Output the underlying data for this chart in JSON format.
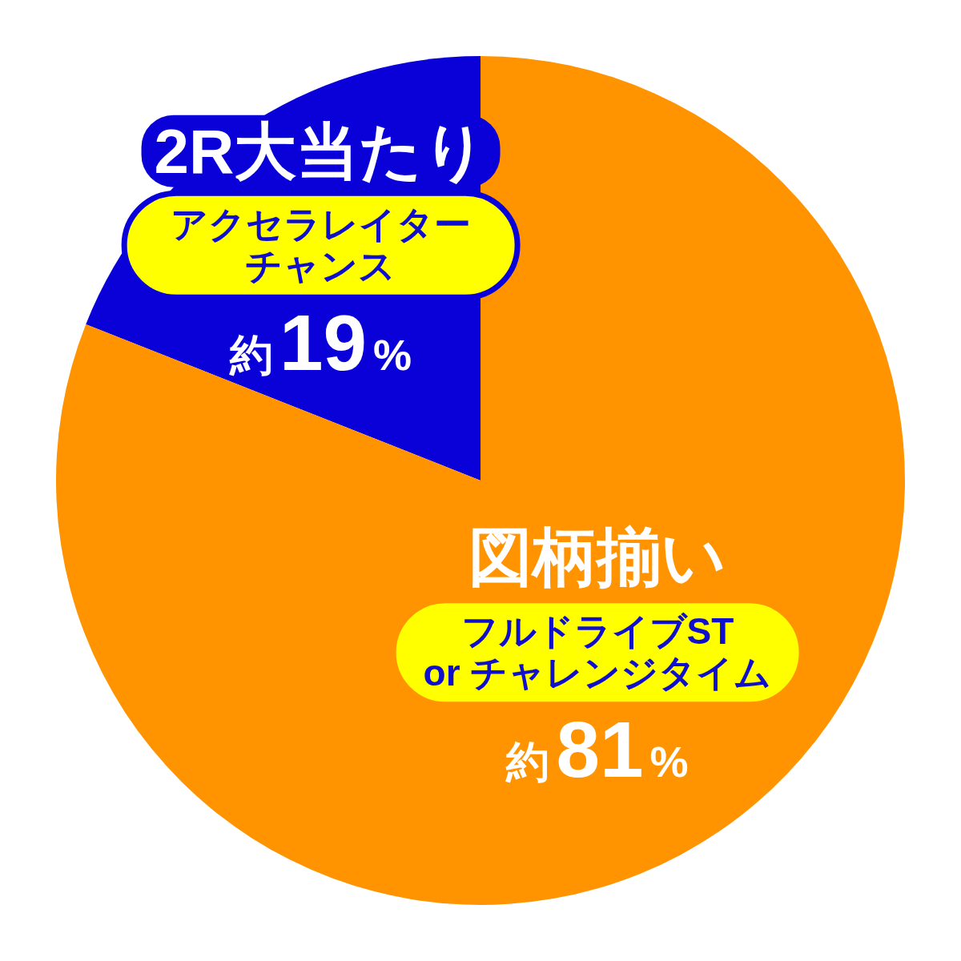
{
  "chart_data": {
    "type": "pie",
    "categories": [
      "2R大当たり",
      "図柄揃い"
    ],
    "values": [
      19,
      81
    ],
    "colors": [
      "#0a00d8",
      "#ff9300"
    ],
    "value_labels": [
      "約19%",
      "約81%"
    ],
    "annotations": [
      "アクセラレイターチャンス",
      "フルドライブST\nor チャレンジタイム"
    ]
  }
}
